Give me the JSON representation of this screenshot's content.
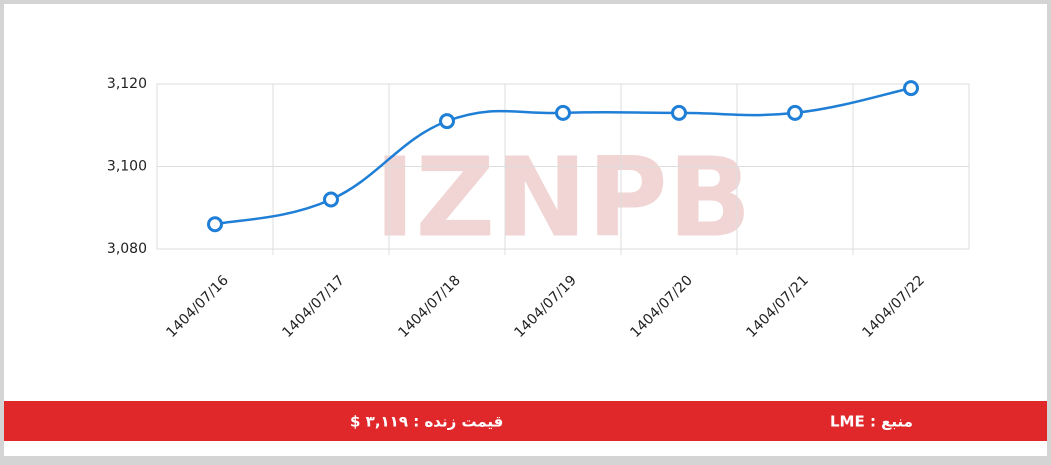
{
  "chart_data": {
    "type": "line",
    "watermark": "IZNPB",
    "categories": [
      "1404/07/16",
      "1404/07/17",
      "1404/07/18",
      "1404/07/19",
      "1404/07/20",
      "1404/07/21",
      "1404/07/22"
    ],
    "values": [
      3086,
      3092,
      3111,
      3113,
      3113,
      3113,
      3119
    ],
    "color": "#1f7fd6",
    "ylim": [
      3080,
      3120
    ],
    "yticks": [
      {
        "value": 3080,
        "label": "3,080"
      },
      {
        "value": 3100,
        "label": "3,100"
      },
      {
        "value": 3120,
        "label": "3,120"
      }
    ],
    "grid": true
  },
  "footer": {
    "price": "قیمت زنده : ۳,۱۱۹ $",
    "source": "منبع : LME"
  }
}
